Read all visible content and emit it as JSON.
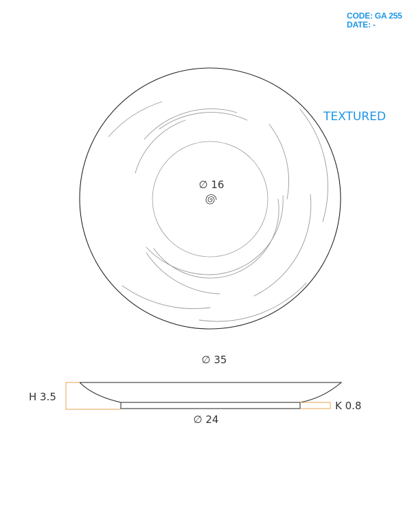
{
  "header": {
    "code_label": "CODE: GA 255",
    "date_label": "DATE: -",
    "accent_color": "#1e96e6"
  },
  "top_view": {
    "finish_label": "TEXTURED",
    "inner_diameter_label": "∅ 16",
    "outer_diameter_label": "∅ 35",
    "center_mark_icon": "spiral-icon"
  },
  "side_view": {
    "height_label": "H 3.5",
    "foot_height_label": "K 0.8",
    "base_diameter_label": "∅ 24",
    "dimension_line_color": "#e8a050"
  },
  "colors": {
    "outline": "#222222",
    "texture_lines": "#9a9a9a",
    "label_text": "#333333"
  }
}
